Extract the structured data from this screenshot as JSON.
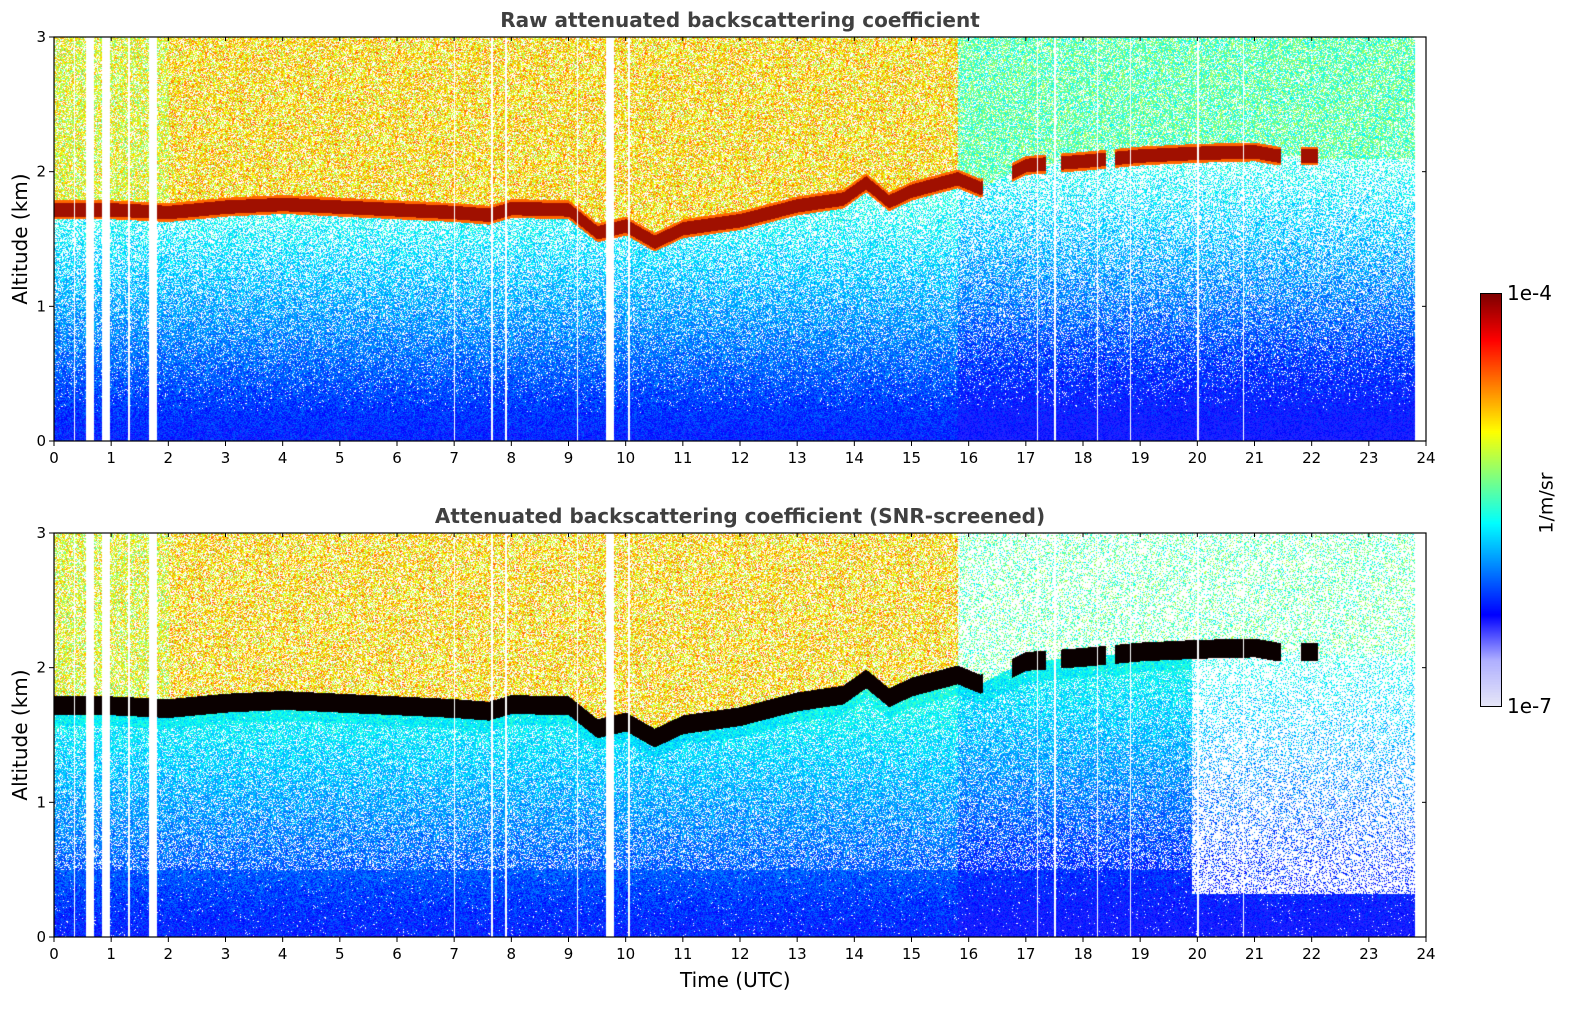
{
  "chart_data": [
    {
      "type": "heatmap",
      "title": "Raw attenuated backscattering coefficient",
      "xlabel": "",
      "ylabel": "Altitude (km)",
      "xlim": [
        0,
        24
      ],
      "ylim": [
        0,
        3
      ],
      "xticks": [
        "0",
        "1",
        "2",
        "3",
        "4",
        "5",
        "6",
        "7",
        "8",
        "9",
        "10",
        "11",
        "12",
        "13",
        "14",
        "15",
        "16",
        "17",
        "18",
        "19",
        "20",
        "21",
        "22",
        "23",
        "24"
      ],
      "yticks": [
        "0",
        "1",
        "2",
        "3"
      ],
      "data_end_hour": 23.8,
      "gap_hours": [
        0.62,
        0.9,
        1.72,
        9.72
      ],
      "sparse_gap_hours": [
        0.35,
        1.3,
        7.0,
        7.65,
        7.9,
        9.15,
        10.05,
        17.2,
        17.5,
        18.25,
        18.82,
        20.0,
        20.8
      ],
      "cloud_base_km": [
        {
          "hour": 0,
          "alt": 1.72
        },
        {
          "hour": 1,
          "alt": 1.72
        },
        {
          "hour": 2,
          "alt": 1.7
        },
        {
          "hour": 3,
          "alt": 1.74
        },
        {
          "hour": 4,
          "alt": 1.76
        },
        {
          "hour": 5,
          "alt": 1.74
        },
        {
          "hour": 6,
          "alt": 1.72
        },
        {
          "hour": 7,
          "alt": 1.7
        },
        {
          "hour": 7.6,
          "alt": 1.68
        },
        {
          "hour": 8,
          "alt": 1.73
        },
        {
          "hour": 9,
          "alt": 1.72
        },
        {
          "hour": 9.5,
          "alt": 1.55
        },
        {
          "hour": 10,
          "alt": 1.6
        },
        {
          "hour": 10.5,
          "alt": 1.48
        },
        {
          "hour": 11,
          "alt": 1.58
        },
        {
          "hour": 12,
          "alt": 1.64
        },
        {
          "hour": 13,
          "alt": 1.75
        },
        {
          "hour": 13.8,
          "alt": 1.8
        },
        {
          "hour": 14.2,
          "alt": 1.92
        },
        {
          "hour": 14.6,
          "alt": 1.78
        },
        {
          "hour": 15,
          "alt": 1.86
        },
        {
          "hour": 15.8,
          "alt": 1.95
        },
        {
          "hour": 16.2,
          "alt": 1.88
        },
        {
          "hour": 17,
          "alt": 2.05
        },
        {
          "hour": 18,
          "alt": 2.08
        },
        {
          "hour": 19,
          "alt": 2.12
        },
        {
          "hour": 20,
          "alt": 2.14
        },
        {
          "hour": 21,
          "alt": 2.15
        },
        {
          "hour": 21.4,
          "alt": 2.12
        },
        {
          "hour": 22.1,
          "alt": 2.12
        }
      ],
      "cloud_gap_hours": [
        [
          16.25,
          16.75
        ],
        [
          17.35,
          17.6
        ],
        [
          18.4,
          18.55
        ],
        [
          21.45,
          21.8
        ]
      ],
      "cloud_color": "#a01000",
      "noise_alt_km": 1.0,
      "regime_change_hour": 15.8
    },
    {
      "type": "heatmap",
      "title": "Attenuated backscattering coefficient (SNR-screened)",
      "xlabel": "Time (UTC)",
      "ylabel": "Altitude (km)",
      "xlim": [
        0,
        24
      ],
      "ylim": [
        0,
        3
      ],
      "xticks": [
        "0",
        "1",
        "2",
        "3",
        "4",
        "5",
        "6",
        "7",
        "8",
        "9",
        "10",
        "11",
        "12",
        "13",
        "14",
        "15",
        "16",
        "17",
        "18",
        "19",
        "20",
        "21",
        "22",
        "23",
        "24"
      ],
      "yticks": [
        "0",
        "1",
        "2",
        "3"
      ],
      "data_end_hour": 23.8,
      "gap_hours": [
        0.62,
        0.9,
        1.72,
        9.72
      ],
      "sparse_gap_hours": [
        0.35,
        1.3,
        7.0,
        7.65,
        7.9,
        9.15,
        10.05,
        17.2,
        17.5,
        18.25,
        18.82,
        20.0,
        20.8
      ],
      "cloud_color": "#0a0000",
      "screened": true,
      "low_layer_top_km": 0.32,
      "low_layer_start_hour": 19.9
    }
  ],
  "colorbar": {
    "title": "1/m/sr",
    "max_label": "1e-4",
    "min_label": "1e-7",
    "colormap": "jet",
    "stops": [
      "#e8e8f8",
      "#b0b0ff",
      "#0000ff",
      "#0080ff",
      "#00ffff",
      "#80ff80",
      "#ffff00",
      "#ff8000",
      "#ff0000",
      "#800000"
    ]
  }
}
